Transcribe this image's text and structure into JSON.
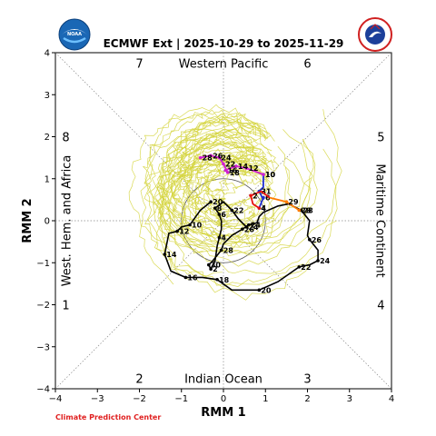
{
  "logos": {
    "left_text": "NOAA",
    "right_text": "NATIONAL WEATHER SERVICE"
  },
  "footer": {
    "credit": "Climate Prediction Center"
  },
  "chart_data": {
    "type": "line",
    "title": "ECMWF Ext | 2025-10-29 to 2025-11-29",
    "xlabel": "RMM 1",
    "ylabel": "RMM 2",
    "xlim": [
      -4,
      4
    ],
    "ylim": [
      -4,
      4
    ],
    "xticks": [
      -4,
      -3,
      -2,
      -1,
      0,
      1,
      2,
      3,
      4
    ],
    "yticks": [
      -4,
      -3,
      -2,
      -1,
      0,
      1,
      2,
      3,
      4
    ],
    "grid": false,
    "phase_numbers": [
      {
        "label": "7",
        "x": -2,
        "y": 3.75
      },
      {
        "label": "6",
        "x": 2,
        "y": 3.75
      },
      {
        "label": "8",
        "x": -3.75,
        "y": 2
      },
      {
        "label": "5",
        "x": 3.75,
        "y": 2
      },
      {
        "label": "1",
        "x": -3.75,
        "y": -2
      },
      {
        "label": "4",
        "x": 3.75,
        "y": -2
      },
      {
        "label": "2",
        "x": -2,
        "y": -3.75
      },
      {
        "label": "3",
        "x": 2,
        "y": -3.75
      }
    ],
    "region_labels": {
      "top": "Western Pacific",
      "bottom": "Indian Ocean",
      "left": "West. Hem. and Africa",
      "right": "Maritime Continent"
    },
    "colors": {
      "ensemble": "#d4d43a",
      "observed": "#000000",
      "forecast_early": "#1f2fd0",
      "forecast_mid": "#e81010",
      "forecast_orange": "#ff7a00",
      "forecast_magenta": "#d020d0",
      "circle": "#555555"
    },
    "ensemble_members": 51,
    "series": [
      {
        "key": "observed",
        "points": [
          {
            "label": "20",
            "x": -0.3,
            "y": 0.45
          },
          {
            "label": "",
            "x": -0.55,
            "y": 0.25
          },
          {
            "label": "10",
            "x": -0.8,
            "y": -0.1
          },
          {
            "label": "",
            "x": -1.0,
            "y": -0.15
          },
          {
            "label": "12",
            "x": -1.1,
            "y": -0.25
          },
          {
            "label": "",
            "x": -1.3,
            "y": -0.3
          },
          {
            "label": "14",
            "x": -1.4,
            "y": -0.8
          },
          {
            "label": "",
            "x": -1.25,
            "y": -1.2
          },
          {
            "label": "16",
            "x": -0.9,
            "y": -1.35
          },
          {
            "label": "",
            "x": -0.5,
            "y": -1.35
          },
          {
            "label": "18",
            "x": -0.15,
            "y": -1.4
          },
          {
            "label": "",
            "x": 0.2,
            "y": -1.65
          },
          {
            "label": "20",
            "x": 0.85,
            "y": -1.65
          },
          {
            "label": "",
            "x": 1.3,
            "y": -1.45
          },
          {
            "label": "22",
            "x": 1.8,
            "y": -1.1
          },
          {
            "label": "",
            "x": 2.05,
            "y": -1.05
          },
          {
            "label": "24",
            "x": 2.25,
            "y": -0.95
          },
          {
            "label": "",
            "x": 2.25,
            "y": -0.7
          },
          {
            "label": "26",
            "x": 2.05,
            "y": -0.45
          },
          {
            "label": "",
            "x": 2.0,
            "y": -0.35
          },
          {
            "label": "",
            "x": 2.05,
            "y": 0.0
          },
          {
            "label": "28",
            "x": 1.85,
            "y": 0.25
          },
          {
            "label": "",
            "x": 1.55,
            "y": 0.4
          },
          {
            "label": "",
            "x": 1.3,
            "y": 0.35
          },
          {
            "label": "",
            "x": 0.95,
            "y": 0.2
          },
          {
            "label": "",
            "x": 0.85,
            "y": 0.1
          },
          {
            "label": "",
            "x": 0.8,
            "y": -0.05
          },
          {
            "label": "24",
            "x": 0.6,
            "y": -0.1
          },
          {
            "label": "26",
            "x": 0.45,
            "y": -0.2
          },
          {
            "label": "",
            "x": 0.2,
            "y": -0.35
          },
          {
            "label": "",
            "x": 0.0,
            "y": -0.55
          },
          {
            "label": "28",
            "x": -0.05,
            "y": -0.7
          },
          {
            "label": "",
            "x": -0.25,
            "y": -0.95
          },
          {
            "label": "30",
            "x": -0.35,
            "y": -1.05
          },
          {
            "label": "2",
            "x": -0.3,
            "y": -1.15
          },
          {
            "label": "",
            "x": -0.2,
            "y": -0.95
          },
          {
            "label": "",
            "x": -0.15,
            "y": -0.6
          },
          {
            "label": "4",
            "x": -0.1,
            "y": -0.4
          },
          {
            "label": "",
            "x": -0.05,
            "y": -0.2
          },
          {
            "label": "",
            "x": -0.05,
            "y": 0.0
          },
          {
            "label": "6",
            "x": -0.1,
            "y": 0.15
          },
          {
            "label": "8",
            "x": -0.2,
            "y": 0.3
          },
          {
            "label": "",
            "x": 0.0,
            "y": 0.45
          },
          {
            "label": "22",
            "x": 0.2,
            "y": 0.25
          },
          {
            "label": "",
            "x": 0.35,
            "y": 0.05
          },
          {
            "label": "24",
            "x": 0.55,
            "y": -0.15
          }
        ]
      },
      {
        "key": "forecast_early",
        "points": [
          {
            "label": "10",
            "x": 0.95,
            "y": 1.1
          },
          {
            "label": "",
            "x": 0.95,
            "y": 0.8
          },
          {
            "label": "31",
            "x": 0.85,
            "y": 0.7
          },
          {
            "label": "",
            "x": 0.95,
            "y": 0.5
          },
          {
            "label": "6",
            "x": 0.95,
            "y": 0.55
          },
          {
            "label": "4",
            "x": 0.85,
            "y": 0.3
          }
        ]
      },
      {
        "key": "forecast_mid",
        "points": [
          {
            "label": "4",
            "x": 0.85,
            "y": 0.3
          },
          {
            "label": "",
            "x": 0.7,
            "y": 0.4
          },
          {
            "label": "2",
            "x": 0.65,
            "y": 0.6
          },
          {
            "label": "",
            "x": 0.9,
            "y": 0.7
          },
          {
            "label": "",
            "x": 1.1,
            "y": 0.55
          }
        ]
      },
      {
        "key": "forecast_orange",
        "points": [
          {
            "label": "",
            "x": 1.1,
            "y": 0.55
          },
          {
            "label": "29",
            "x": 1.5,
            "y": 0.45
          },
          {
            "label": "28",
            "x": 1.8,
            "y": 0.25
          }
        ]
      },
      {
        "key": "forecast_magenta",
        "points": [
          {
            "label": "10",
            "x": 0.95,
            "y": 1.1
          },
          {
            "label": "12",
            "x": 0.55,
            "y": 1.25
          },
          {
            "label": "14",
            "x": 0.3,
            "y": 1.3
          },
          {
            "label": "16",
            "x": 0.05,
            "y": 1.2
          },
          {
            "label": "18",
            "x": 0.1,
            "y": 1.15
          },
          {
            "label": "22",
            "x": 0.0,
            "y": 1.35
          },
          {
            "label": "24",
            "x": -0.1,
            "y": 1.5
          },
          {
            "label": "26",
            "x": -0.3,
            "y": 1.55
          },
          {
            "label": "28",
            "x": -0.55,
            "y": 1.5
          }
        ]
      }
    ]
  }
}
